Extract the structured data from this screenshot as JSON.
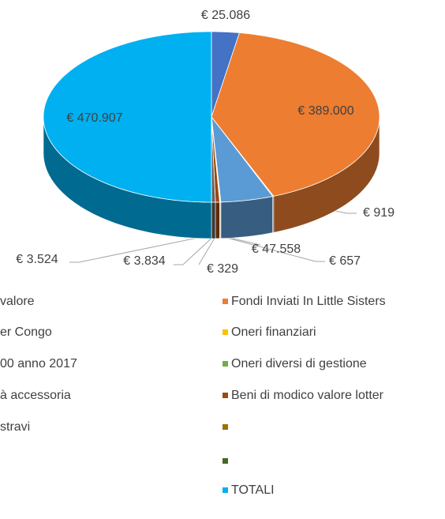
{
  "chart_data": {
    "type": "pie3d",
    "categories": [
      "valore",
      "Fondi Inviati In Little Sisters",
      "er Congo",
      "Oneri finanziari",
      "00 anno 2017",
      "Oneri diversi di gestione",
      "à accessoria",
      "Beni di modico valore lotter",
      "stravi",
      null,
      null,
      "TOTALI"
    ],
    "colors": [
      "#4472c4",
      "#ed7d31",
      "#a5a5a5",
      "#ffc000",
      "#5b9bd5",
      "#70ad47",
      "#264478",
      "#9e480e",
      "#636363",
      "#997300",
      "#43682b",
      "#00b0f0"
    ],
    "values": [
      25086,
      389000,
      919,
      null,
      47558,
      657,
      329,
      3834,
      3524,
      null,
      null,
      470907
    ],
    "value_labels": [
      "€ 25.086",
      "€ 389.000",
      "€ 919",
      null,
      "€ 47.558",
      "€ 657",
      "€ 329",
      "€ 3.834",
      "€ 3.524",
      null,
      null,
      "€ 470.907"
    ]
  }
}
